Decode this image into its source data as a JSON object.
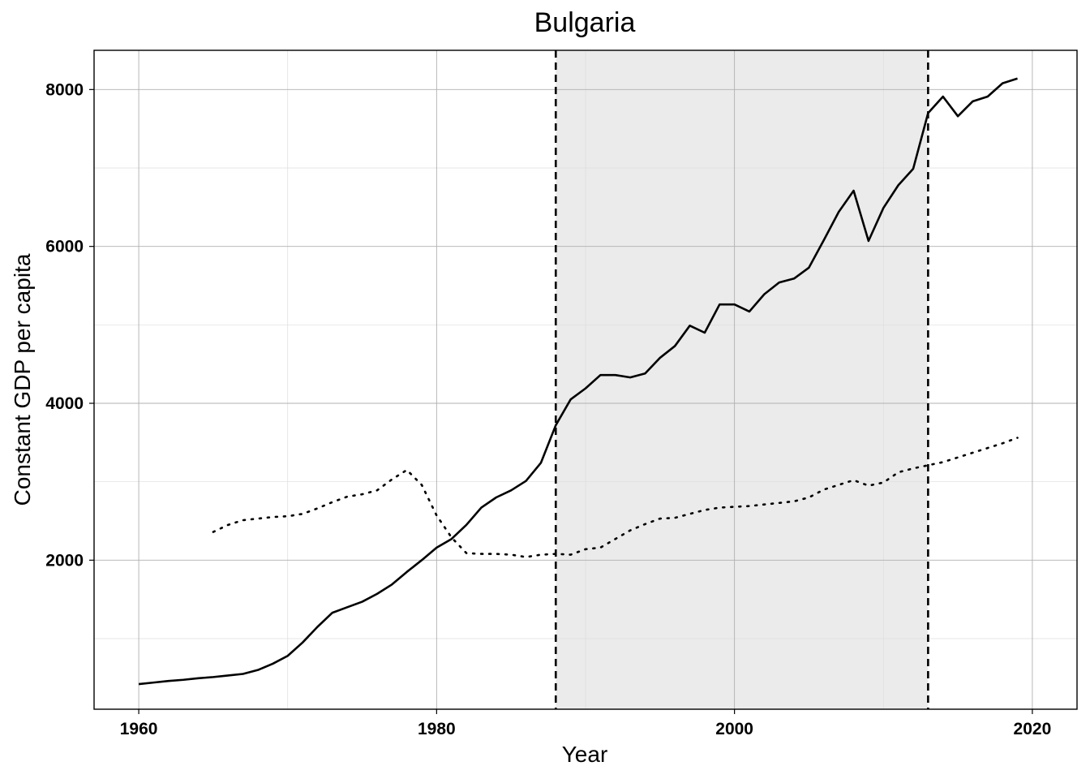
{
  "chart_data": {
    "type": "line",
    "title": "Bulgaria",
    "xlabel": "Year",
    "ylabel": "Constant GDP per capita",
    "xlim": [
      1957,
      2023
    ],
    "ylim": [
      100,
      8500
    ],
    "x_ticks": [
      1960,
      1980,
      2000,
      2020
    ],
    "y_ticks": [
      2000,
      4000,
      6000,
      8000
    ],
    "x_tick_labels": [
      "1960",
      "1980",
      "2000",
      "2020"
    ],
    "y_tick_labels": [
      "2000",
      "4000",
      "6000",
      "8000"
    ],
    "x_minor_ticks": [
      1970,
      1990,
      2010
    ],
    "y_minor_ticks": [
      1000,
      3000,
      5000,
      7000
    ],
    "grid": true,
    "legend": "none",
    "shaded_region": [
      1988,
      2013
    ],
    "vertical_lines": [
      1988,
      2013
    ],
    "series": [
      {
        "style": "solid",
        "x": [
          1960,
          1961,
          1962,
          1963,
          1964,
          1965,
          1966,
          1967,
          1968,
          1969,
          1970,
          1971,
          1972,
          1973,
          1974,
          1975,
          1976,
          1977,
          1978,
          1979,
          1980,
          1981,
          1982,
          1983,
          1984,
          1985,
          1986,
          1987,
          1988,
          1989,
          1990,
          1991,
          1992,
          1993,
          1994,
          1995,
          1996,
          1997,
          1998,
          1999,
          2000,
          2001,
          2002,
          2003,
          2004,
          2005,
          2006,
          2007,
          2008,
          2009,
          2010,
          2011,
          2012,
          2013,
          2014,
          2015,
          2016,
          2017,
          2018,
          2019
        ],
        "values": [
          420,
          440,
          460,
          475,
          495,
          510,
          530,
          550,
          600,
          680,
          780,
          950,
          1150,
          1330,
          1400,
          1470,
          1570,
          1690,
          1850,
          2000,
          2160,
          2270,
          2450,
          2670,
          2800,
          2890,
          3010,
          3240,
          3720,
          4050,
          4190,
          4360,
          4360,
          4330,
          4380,
          4580,
          4730,
          4990,
          4900,
          5260,
          5260,
          5170,
          5390,
          5540,
          5590,
          5730,
          6080,
          6440,
          6710,
          6070,
          6490,
          6780,
          6990,
          7700,
          7910,
          7660,
          7850,
          7910,
          8080,
          8140
        ]
      },
      {
        "style": "dotted",
        "x": [
          1965,
          1966,
          1967,
          1968,
          1969,
          1970,
          1971,
          1972,
          1973,
          1974,
          1975,
          1976,
          1977,
          1978,
          1979,
          1980,
          1981,
          1982,
          1983,
          1984,
          1985,
          1986,
          1987,
          1988,
          1989,
          1990,
          1991,
          1992,
          1993,
          1994,
          1995,
          1996,
          1997,
          1998,
          1999,
          2000,
          2001,
          2002,
          2003,
          2004,
          2005,
          2006,
          2007,
          2008,
          2009,
          2010,
          2011,
          2012,
          2013,
          2014,
          2015,
          2016,
          2017,
          2018,
          2019
        ],
        "values": [
          2360,
          2450,
          2510,
          2530,
          2550,
          2560,
          2590,
          2660,
          2740,
          2810,
          2840,
          2890,
          3030,
          3150,
          2960,
          2570,
          2290,
          2090,
          2080,
          2080,
          2070,
          2040,
          2070,
          2080,
          2070,
          2140,
          2160,
          2270,
          2380,
          2460,
          2530,
          2540,
          2590,
          2640,
          2670,
          2680,
          2690,
          2710,
          2730,
          2750,
          2800,
          2900,
          2960,
          3020,
          2950,
          2990,
          3120,
          3170,
          3210,
          3250,
          3310,
          3370,
          3430,
          3490,
          3560
        ]
      }
    ]
  }
}
